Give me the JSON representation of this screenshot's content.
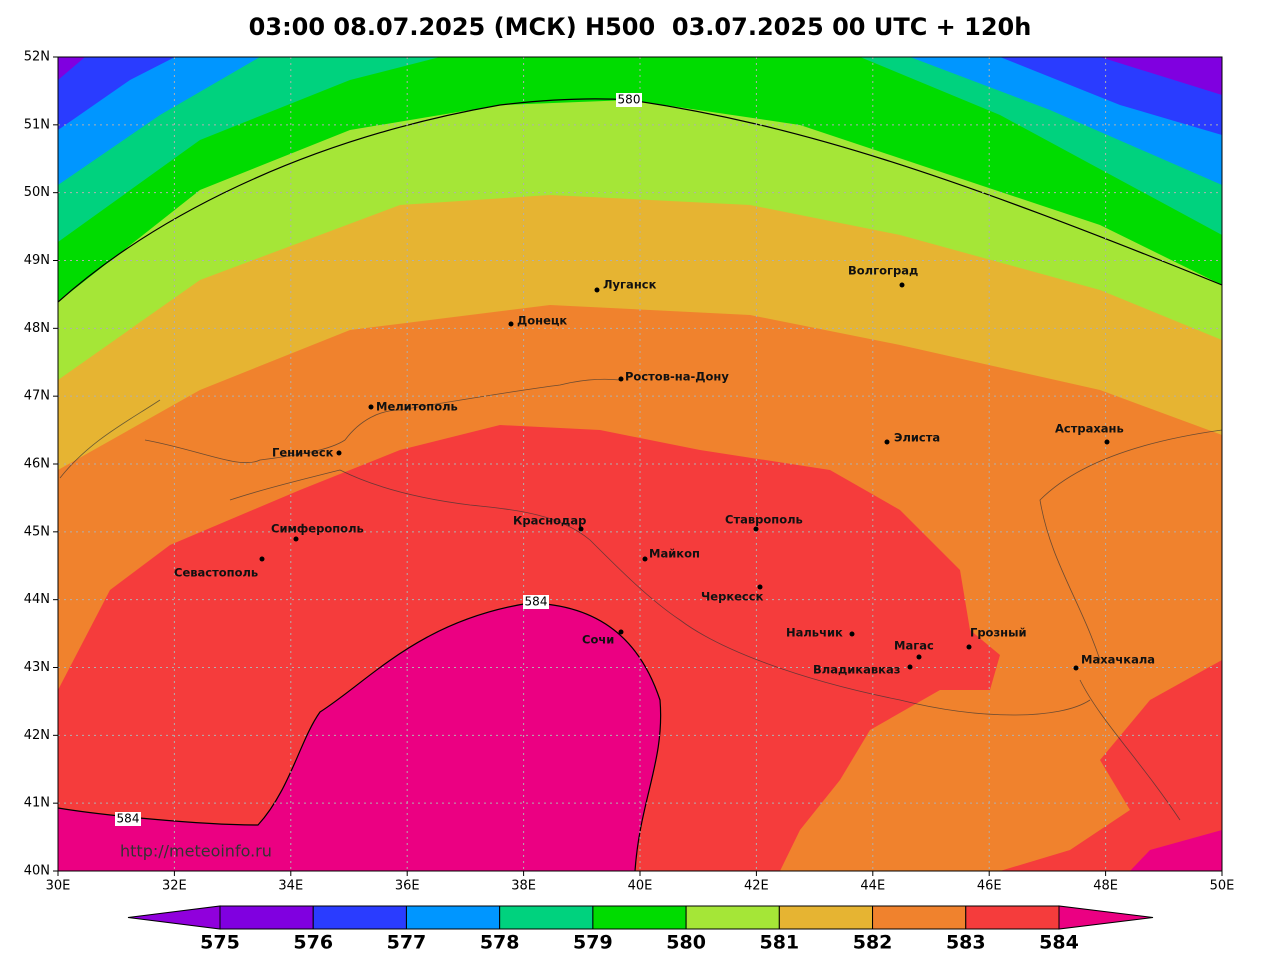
{
  "title": "03:00 08.07.2025 (МСК) H500  03.07.2025 00 UTC + 120h",
  "lon_ticks": [
    {
      "value": 30,
      "label": "30E"
    },
    {
      "value": 32,
      "label": "32E"
    },
    {
      "value": 34,
      "label": "34E"
    },
    {
      "value": 36,
      "label": "36E"
    },
    {
      "value": 38,
      "label": "38E"
    },
    {
      "value": 40,
      "label": "40E"
    },
    {
      "value": 42,
      "label": "42E"
    },
    {
      "value": 44,
      "label": "44E"
    },
    {
      "value": 46,
      "label": "46E"
    },
    {
      "value": 48,
      "label": "48E"
    },
    {
      "value": 50,
      "label": "50E"
    }
  ],
  "lat_ticks": [
    {
      "value": 40,
      "label": "40N"
    },
    {
      "value": 41,
      "label": "41N"
    },
    {
      "value": 42,
      "label": "42N"
    },
    {
      "value": 43,
      "label": "43N"
    },
    {
      "value": 44,
      "label": "44N"
    },
    {
      "value": 45,
      "label": "45N"
    },
    {
      "value": 46,
      "label": "46N"
    },
    {
      "value": 47,
      "label": "47N"
    },
    {
      "value": 48,
      "label": "48N"
    },
    {
      "value": 49,
      "label": "49N"
    },
    {
      "value": 50,
      "label": "50N"
    },
    {
      "value": 51,
      "label": "51N"
    },
    {
      "value": 52,
      "label": "52N"
    }
  ],
  "contour_labels": [
    "580",
    "584",
    "584"
  ],
  "cities": [
    "Луганск",
    "Донецк",
    "Волгоград",
    "Ростов-на-Дону",
    "Мелитополь",
    "Геническ",
    "Элиста",
    "Астрахань",
    "Симферополь",
    "Севастополь",
    "Краснодар",
    "Ставрополь",
    "Майкоп",
    "Черкесск",
    "Сочи",
    "Нальчик",
    "Грозный",
    "Магас",
    "Владикавказ",
    "Махачкала"
  ],
  "colorbar": {
    "levels": [
      575,
      576,
      577,
      578,
      579,
      580,
      581,
      582,
      583,
      584
    ],
    "colors": [
      "#9000dc",
      "#8000e0",
      "#2a3cff",
      "#0096ff",
      "#00d27e",
      "#00dc00",
      "#a5e637",
      "#e6b432",
      "#f0822d",
      "#f53c3c",
      "#eb0082"
    ]
  },
  "url": "http://meteoinfo.ru"
}
